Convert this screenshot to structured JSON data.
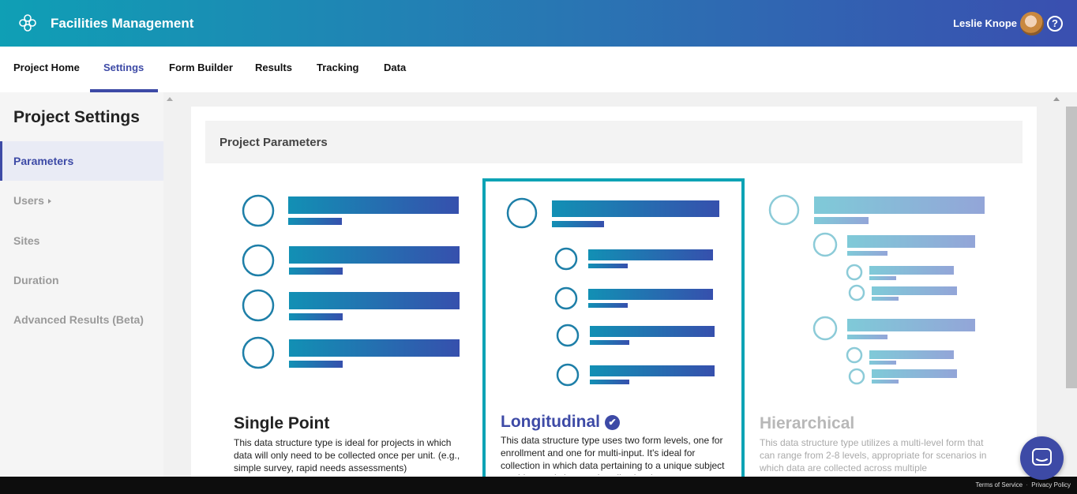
{
  "header": {
    "app_title": "Facilities Management",
    "user_name": "Leslie Knope",
    "help_symbol": "?",
    "colors": {
      "gradient_start": "#0f9fb5",
      "gradient_end": "#3a4fb0"
    }
  },
  "tabs": [
    {
      "label": "Project Home",
      "active": false
    },
    {
      "label": "Settings",
      "active": true
    },
    {
      "label": "Form Builder",
      "active": false
    },
    {
      "label": "Results",
      "active": false
    },
    {
      "label": "Tracking",
      "active": false
    },
    {
      "label": "Data",
      "active": false
    }
  ],
  "sidebar": {
    "title": "Project Settings",
    "items": [
      {
        "label": "Parameters",
        "active": true
      },
      {
        "label": "Users",
        "has_submenu": true
      },
      {
        "label": "Sites"
      },
      {
        "label": "Duration"
      },
      {
        "label": "Advanced Results (Beta)"
      }
    ]
  },
  "main": {
    "section_title": "Project Parameters",
    "options": [
      {
        "title": "Single Point",
        "description": "This data structure type is ideal for projects in which data will only need to be collected once per unit. (e.g., simple survey, rapid needs assessments)",
        "selected": false
      },
      {
        "title": "Longitudinal",
        "description": "This data structure type uses two form levels, one for enrollment and one for multi-input. It's ideal for collection in which data pertaining to a unique subject would not only be mostly collecting (...",
        "selected": true
      },
      {
        "title": "Hierarchical",
        "description": "This data structure type utilizes a multi-level form that can range from 2-8 levels, appropriate for scenarios in which data are collected across multiple",
        "selected": false
      }
    ]
  },
  "footer": {
    "terms": "Terms of Service",
    "privacy": "Privacy Policy"
  },
  "accent_color": "#3d4aa6",
  "selected_border_color": "#0da3b5"
}
